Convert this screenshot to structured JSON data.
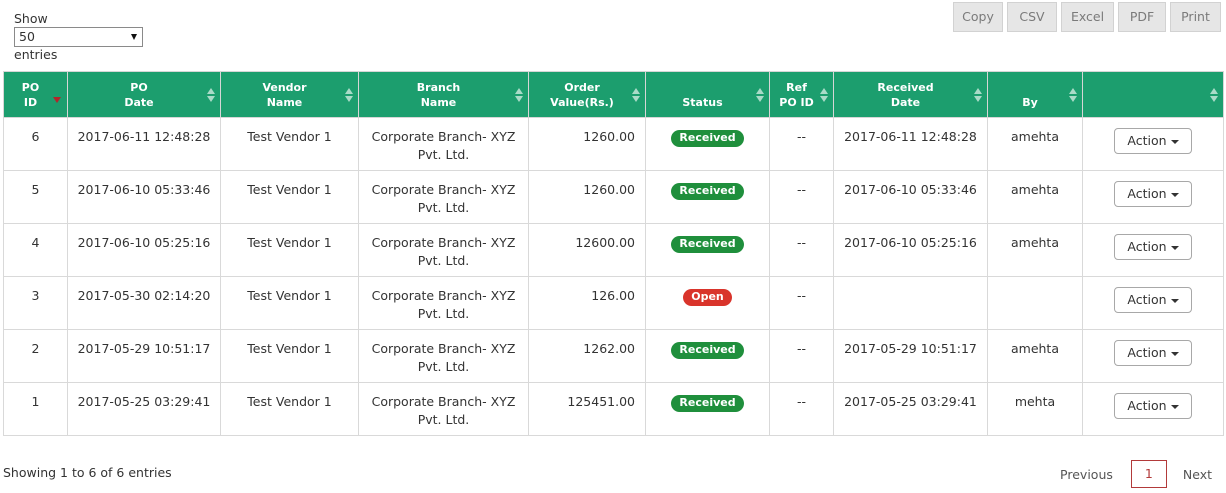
{
  "length_menu": {
    "label_before": "Show",
    "selected": "50",
    "label_after": "entries"
  },
  "export_buttons": [
    "Copy",
    "CSV",
    "Excel",
    "PDF",
    "Print"
  ],
  "columns": [
    {
      "line1": "PO",
      "line2": "ID",
      "sort": "desc"
    },
    {
      "line1": "PO",
      "line2": "Date",
      "sort": "both"
    },
    {
      "line1": "Vendor",
      "line2": "Name",
      "sort": "both"
    },
    {
      "line1": "Branch",
      "line2": "Name",
      "sort": "both"
    },
    {
      "line1": "Order",
      "line2": "Value(Rs.)",
      "sort": "both"
    },
    {
      "line1": "",
      "line2": "Status",
      "sort": "both"
    },
    {
      "line1": "Ref",
      "line2": "PO ID",
      "sort": "both"
    },
    {
      "line1": "Received",
      "line2": "Date",
      "sort": "both"
    },
    {
      "line1": "",
      "line2": "By",
      "sort": "both"
    },
    {
      "line1": "",
      "line2": "",
      "sort": "both"
    }
  ],
  "rows": [
    {
      "po_id": "6",
      "po_date": "2017-06-11 12:48:28",
      "vendor": "Test Vendor 1",
      "branch_line1": "Corporate Branch- XYZ",
      "branch_line2": "Pvt. Ltd.",
      "value": "1260.00",
      "status": "Received",
      "status_type": "received",
      "ref_po_id": "--",
      "received_date": "2017-06-11 12:48:28",
      "by": "amehta",
      "action": "Action"
    },
    {
      "po_id": "5",
      "po_date": "2017-06-10 05:33:46",
      "vendor": "Test Vendor 1",
      "branch_line1": "Corporate Branch- XYZ",
      "branch_line2": "Pvt. Ltd.",
      "value": "1260.00",
      "status": "Received",
      "status_type": "received",
      "ref_po_id": "--",
      "received_date": "2017-06-10 05:33:46",
      "by": "amehta",
      "action": "Action"
    },
    {
      "po_id": "4",
      "po_date": "2017-06-10 05:25:16",
      "vendor": "Test Vendor 1",
      "branch_line1": "Corporate Branch- XYZ",
      "branch_line2": "Pvt. Ltd.",
      "value": "12600.00",
      "status": "Received",
      "status_type": "received",
      "ref_po_id": "--",
      "received_date": "2017-06-10 05:25:16",
      "by": "amehta",
      "action": "Action"
    },
    {
      "po_id": "3",
      "po_date": "2017-05-30 02:14:20",
      "vendor": "Test Vendor 1",
      "branch_line1": "Corporate Branch- XYZ",
      "branch_line2": "Pvt. Ltd.",
      "value": "126.00",
      "status": "Open",
      "status_type": "open",
      "ref_po_id": "--",
      "received_date": "",
      "by": "",
      "action": "Action"
    },
    {
      "po_id": "2",
      "po_date": "2017-05-29 10:51:17",
      "vendor": "Test Vendor 1",
      "branch_line1": "Corporate Branch- XYZ",
      "branch_line2": "Pvt. Ltd.",
      "value": "1262.00",
      "status": "Received",
      "status_type": "received",
      "ref_po_id": "--",
      "received_date": "2017-05-29 10:51:17",
      "by": "amehta",
      "action": "Action"
    },
    {
      "po_id": "1",
      "po_date": "2017-05-25 03:29:41",
      "vendor": "Test Vendor 1",
      "branch_line1": "Corporate Branch- XYZ",
      "branch_line2": "Pvt. Ltd.",
      "value": "125451.00",
      "status": "Received",
      "status_type": "received",
      "ref_po_id": "--",
      "received_date": "2017-05-25 03:29:41",
      "by": "mehta",
      "action": "Action"
    }
  ],
  "footer": {
    "info": "Showing 1 to 6 of 6 entries",
    "previous": "Previous",
    "current_page": "1",
    "next": "Next"
  },
  "colors": {
    "header_bg": "#1c9e6e",
    "received": "#1f8f3c",
    "open": "#d9342b",
    "sort_active": "#b3252a",
    "page_active": "#b23a3a"
  },
  "icons": {
    "select_caret": "chevron-down-icon",
    "sort_both": "sort-icon",
    "sort_desc": "sort-desc-icon",
    "action_caret": "caret-down-icon"
  }
}
